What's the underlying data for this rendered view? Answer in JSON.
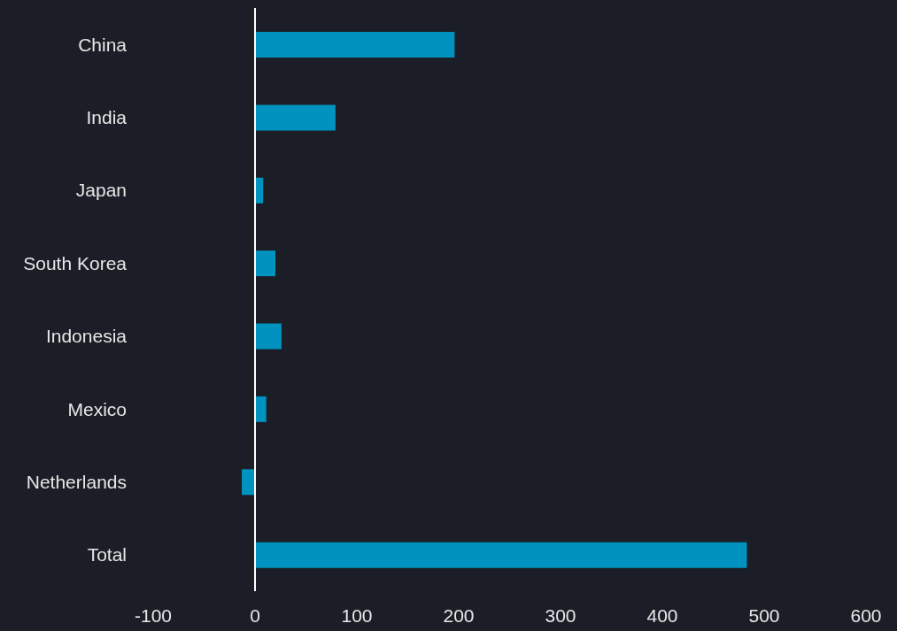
{
  "chart_data": {
    "type": "bar",
    "orientation": "horizontal",
    "categories": [
      "China",
      "India",
      "Japan",
      "South Korea",
      "Indonesia",
      "Mexico",
      "Netherlands",
      "Total"
    ],
    "values": [
      196,
      79,
      8,
      20,
      26,
      11,
      -13,
      483
    ],
    "color": "#0093bf",
    "xlim": [
      -100,
      600
    ],
    "xticks": [
      -100,
      0,
      100,
      200,
      300,
      400,
      500,
      600
    ],
    "ref_lines": [
      {
        "axis": "x",
        "value": 0,
        "color": "#ffffff"
      }
    ],
    "legend": false
  }
}
